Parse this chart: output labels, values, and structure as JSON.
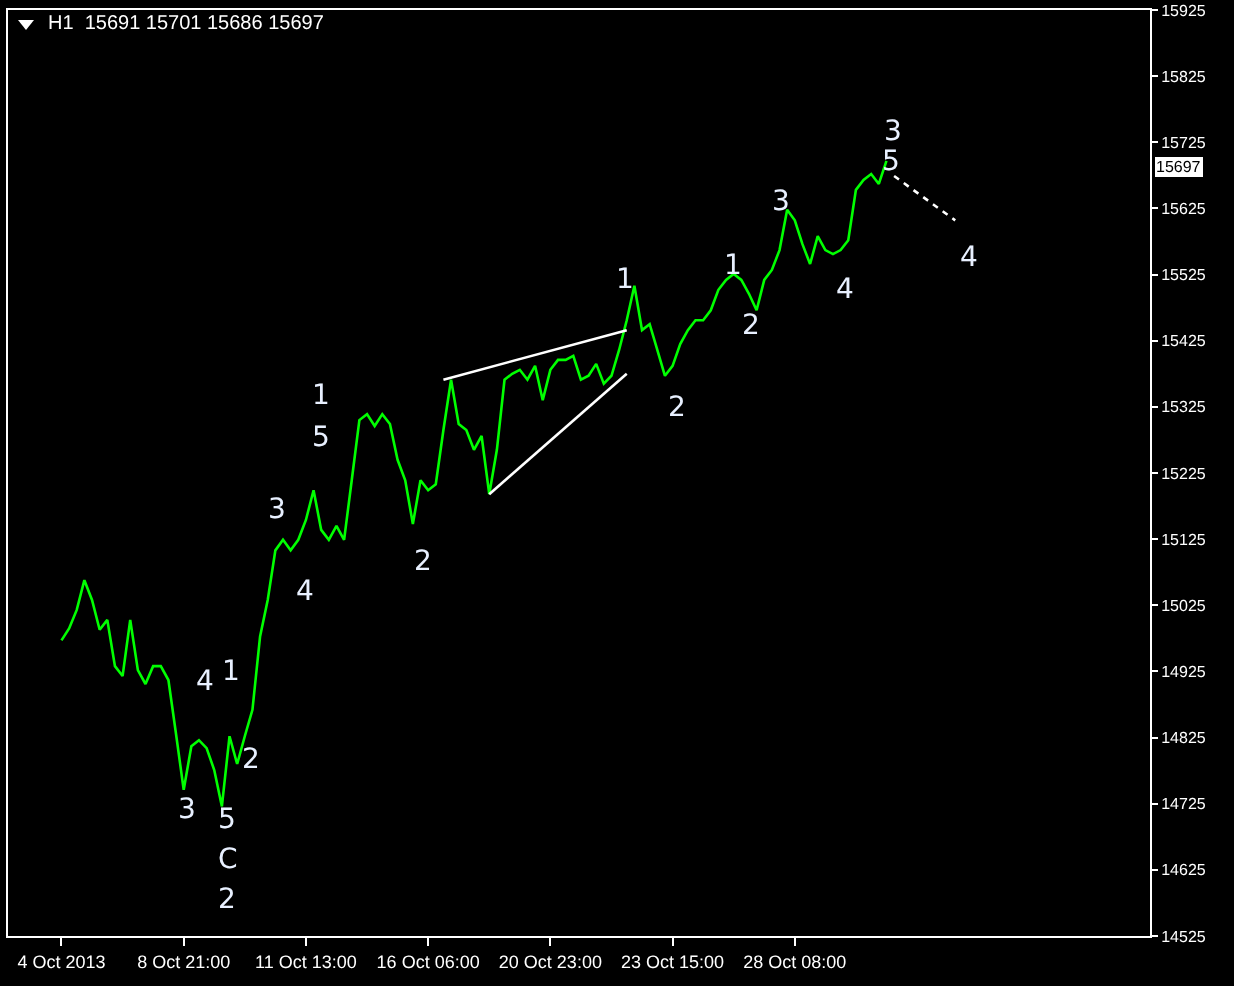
{
  "chart_data": {
    "type": "line",
    "title": "H1  15691 15701 15686 15697",
    "categories": [
      "4 Oct 2013",
      null,
      null,
      null,
      null,
      null,
      null,
      null,
      null,
      null,
      null,
      null,
      null,
      null,
      null,
      null,
      "8 Oct 21:00",
      null,
      null,
      null,
      null,
      null,
      null,
      null,
      null,
      null,
      null,
      null,
      null,
      null,
      null,
      null,
      "11 Oct 13:00",
      null,
      null,
      null,
      null,
      null,
      null,
      null,
      null,
      null,
      null,
      null,
      null,
      null,
      null,
      null,
      "16 Oct 06:00",
      null,
      null,
      null,
      null,
      null,
      null,
      null,
      null,
      null,
      null,
      null,
      null,
      null,
      null,
      null,
      "20 Oct 23:00",
      null,
      null,
      null,
      null,
      null,
      null,
      null,
      null,
      null,
      null,
      null,
      null,
      null,
      null,
      null,
      "23 Oct 15:00",
      null,
      null,
      null,
      null,
      null,
      null,
      null,
      null,
      null,
      null,
      null,
      null,
      null,
      null,
      null,
      "28 Oct 08:00",
      null,
      null,
      null,
      null,
      null,
      null,
      null,
      null,
      null,
      null,
      null,
      null,
      null,
      null,
      null,
      null,
      null,
      null,
      null,
      null,
      null,
      null,
      null,
      null,
      null,
      null,
      null,
      null,
      null,
      null,
      null,
      null,
      null,
      null,
      null,
      null,
      null,
      null,
      null,
      null,
      null,
      null,
      null,
      null,
      null,
      null
    ],
    "ylim": [
      14525,
      15925
    ],
    "yticks": [
      14525,
      14625,
      14725,
      14825,
      14925,
      15025,
      15125,
      15225,
      15325,
      15425,
      15525,
      15625,
      15725,
      15825,
      15925
    ],
    "grid": false,
    "marker": "none",
    "line_style": "solid",
    "series": [
      {
        "color": "#00ff00",
        "values": [
          14972,
          14990,
          15018,
          15063,
          15033,
          14988,
          15003,
          14933,
          14918,
          15003,
          14927,
          14906,
          14933,
          14933,
          14912,
          14830,
          14746,
          14812,
          14821,
          14809,
          14776,
          14721,
          14827,
          14785,
          14827,
          14867,
          14978,
          15033,
          15108,
          15124,
          15108,
          15124,
          15154,
          15199,
          15139,
          15124,
          15145,
          15124,
          15214,
          15305,
          15314,
          15296,
          15314,
          15299,
          15245,
          15214,
          15148,
          15214,
          15199,
          15208,
          15290,
          15366,
          15299,
          15290,
          15260,
          15281,
          15193,
          15260,
          15366,
          15375,
          15381,
          15366,
          15387,
          15335,
          15381,
          15396,
          15396,
          15402,
          15366,
          15372,
          15390,
          15360,
          15372,
          15411,
          15456,
          15508,
          15441,
          15450,
          15411,
          15372,
          15387,
          15420,
          15441,
          15456,
          15456,
          15471,
          15502,
          15517,
          15526,
          15517,
          15496,
          15471,
          15517,
          15532,
          15562,
          15623,
          15607,
          15571,
          15541,
          15583,
          15562,
          15556,
          15562,
          15577,
          15653,
          15668,
          15677,
          15662,
          15697,
          null,
          null,
          null,
          null,
          null,
          null,
          null,
          null,
          null,
          null,
          null,
          null,
          null,
          null,
          null,
          null,
          null,
          null,
          null,
          null,
          null,
          null,
          null,
          null,
          null,
          null,
          null,
          null,
          null,
          null,
          null,
          null,
          null,
          null
        ]
      },
      {
        "color": "#ffffff",
        "values": [
          null,
          null,
          null,
          null,
          null,
          null,
          null,
          null,
          null,
          null,
          null,
          null,
          null,
          null,
          null,
          null,
          null,
          null,
          null,
          null,
          null,
          null,
          null,
          null,
          null,
          null,
          null,
          null,
          null,
          null,
          null,
          null,
          null,
          null,
          null,
          null,
          null,
          null,
          null,
          null,
          null,
          null,
          null,
          null,
          null,
          null,
          null,
          null,
          null,
          null,
          15366,
          null,
          null,
          null,
          null,
          null,
          null,
          null,
          null,
          null,
          null,
          null,
          null,
          null,
          null,
          null,
          null,
          null,
          null,
          null,
          null,
          null,
          null,
          null,
          15441,
          null,
          null,
          null,
          null,
          null,
          null,
          null,
          null,
          null,
          null,
          null,
          null,
          null,
          null,
          null,
          null,
          null,
          null,
          null,
          null,
          null,
          null,
          null,
          null,
          null,
          null,
          null,
          null,
          null,
          null,
          null,
          null,
          null,
          null,
          null,
          null,
          null,
          null,
          null,
          null,
          null,
          null,
          null,
          null,
          null,
          null,
          null,
          null,
          null,
          null,
          null,
          null,
          null,
          null,
          null,
          null,
          null,
          null,
          null,
          null,
          null,
          null,
          null,
          null,
          null,
          null,
          null,
          null
        ]
      },
      {
        "color": "#ffffff",
        "values": [
          null,
          null,
          null,
          null,
          null,
          null,
          null,
          null,
          null,
          null,
          null,
          null,
          null,
          null,
          null,
          null,
          null,
          null,
          null,
          null,
          null,
          null,
          null,
          null,
          null,
          null,
          null,
          null,
          null,
          null,
          null,
          null,
          null,
          null,
          null,
          null,
          null,
          null,
          null,
          null,
          null,
          null,
          null,
          null,
          null,
          null,
          null,
          null,
          null,
          null,
          null,
          null,
          null,
          null,
          null,
          null,
          15193,
          null,
          null,
          null,
          null,
          null,
          null,
          null,
          null,
          null,
          null,
          null,
          null,
          null,
          null,
          null,
          null,
          null,
          15375,
          null,
          null,
          null,
          null,
          null,
          null,
          null,
          null,
          null,
          null,
          null,
          null,
          null,
          null,
          null,
          null,
          null,
          null,
          null,
          null,
          null,
          null,
          null,
          null,
          null,
          null,
          null,
          null,
          null,
          null,
          null,
          null,
          null,
          null,
          null,
          null,
          null,
          null,
          null,
          null,
          null,
          null,
          null,
          null,
          null,
          null,
          null,
          null,
          null,
          null,
          null,
          null,
          null,
          null,
          null,
          null,
          null,
          null,
          null,
          null,
          null,
          null,
          null,
          null,
          null,
          null,
          null,
          null
        ]
      },
      {
        "color": "#ffffff",
        "line_style": "dotted",
        "values": [
          null,
          null,
          null,
          null,
          null,
          null,
          null,
          null,
          null,
          null,
          null,
          null,
          null,
          null,
          null,
          null,
          null,
          null,
          null,
          null,
          null,
          null,
          null,
          null,
          null,
          null,
          null,
          null,
          null,
          null,
          null,
          null,
          null,
          null,
          null,
          null,
          null,
          null,
          null,
          null,
          null,
          null,
          null,
          null,
          null,
          null,
          null,
          null,
          null,
          null,
          null,
          null,
          null,
          null,
          null,
          null,
          null,
          null,
          null,
          null,
          null,
          null,
          null,
          null,
          null,
          null,
          null,
          null,
          null,
          null,
          null,
          null,
          null,
          null,
          null,
          null,
          null,
          null,
          null,
          null,
          null,
          null,
          null,
          null,
          null,
          null,
          null,
          null,
          null,
          null,
          null,
          null,
          null,
          null,
          null,
          null,
          null,
          null,
          null,
          null,
          null,
          null,
          null,
          null,
          null,
          null,
          null,
          null,
          null,
          15674,
          null,
          null,
          null,
          null,
          null,
          null,
          null,
          15607,
          null,
          null,
          null,
          null,
          null,
          null,
          null,
          null,
          null,
          null,
          null,
          null,
          null,
          null,
          null,
          null,
          null,
          null,
          null,
          null,
          null,
          null,
          null,
          null,
          null
        ]
      }
    ],
    "annotations": [
      "3",
      "5",
      "C",
      "2",
      "4",
      "1",
      "2",
      "3",
      "4",
      "1",
      "5",
      "2",
      "1",
      "2",
      "1",
      "2",
      "3",
      "4",
      "3",
      "5",
      "4",
      "15697"
    ]
  }
}
